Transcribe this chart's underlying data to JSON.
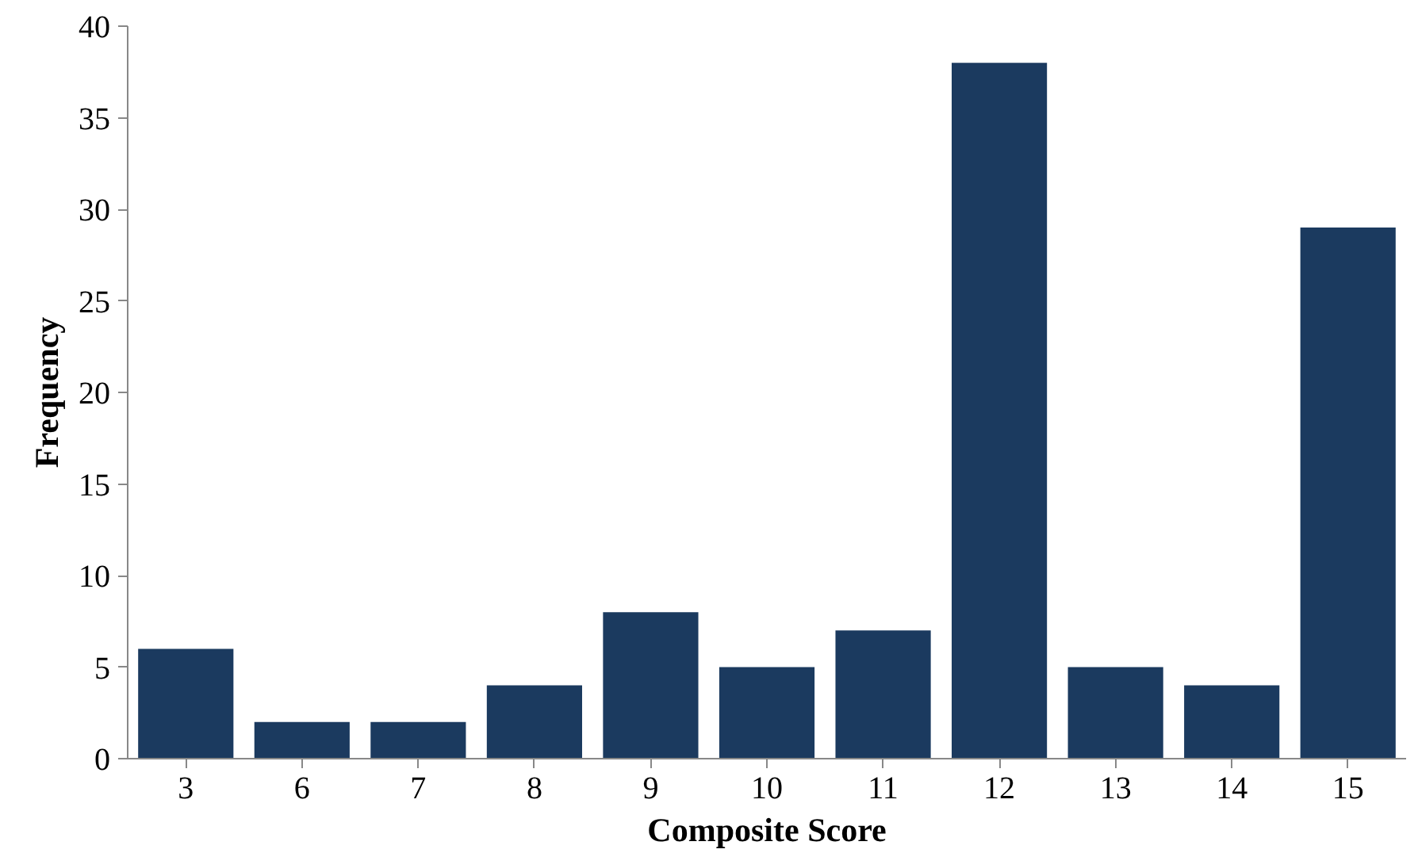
{
  "chart_data": {
    "type": "bar",
    "xlabel": "Composite Score",
    "ylabel": "Frequency",
    "categories": [
      "3",
      "6",
      "7",
      "8",
      "9",
      "10",
      "11",
      "12",
      "13",
      "14",
      "15"
    ],
    "values": [
      6,
      2,
      2,
      4,
      8,
      5,
      7,
      38,
      5,
      4,
      29
    ],
    "color": "#1b3a5f",
    "ylim": [
      0,
      40
    ],
    "yticks": [
      0,
      5,
      10,
      15,
      20,
      25,
      30,
      35,
      40
    ],
    "grid": false
  }
}
